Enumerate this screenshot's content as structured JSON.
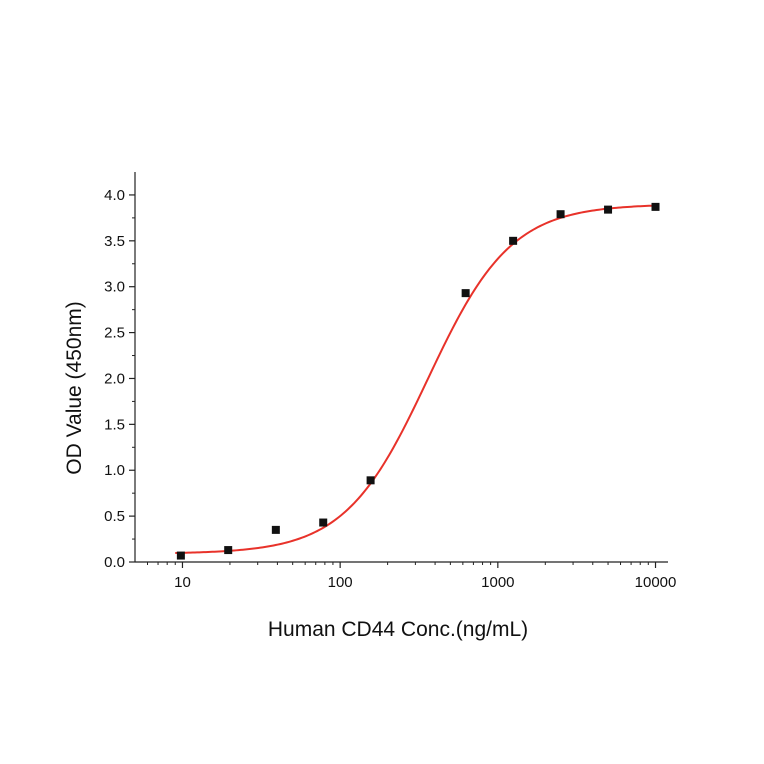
{
  "chart_data": {
    "type": "scatter",
    "title": "",
    "xlabel": "Human CD44 Conc.(ng/mL)",
    "ylabel": "OD Value (450nm)",
    "x_scale": "log",
    "xlim": [
      5,
      12000
    ],
    "ylim": [
      0.0,
      4.25
    ],
    "x_ticks": [
      10,
      100,
      1000,
      10000
    ],
    "x_tick_labels": [
      "10",
      "100",
      "1000",
      "10000"
    ],
    "y_ticks": [
      0.0,
      0.5,
      1.0,
      1.5,
      2.0,
      2.5,
      3.0,
      3.5,
      4.0
    ],
    "y_tick_labels": [
      "0.0",
      "0.5",
      "1.0",
      "1.5",
      "2.0",
      "2.5",
      "3.0",
      "3.5",
      "4.0"
    ],
    "grid": false,
    "legend": "none",
    "series": [
      {
        "marker": "square",
        "color": "#111111",
        "x": [
          9.77,
          19.5,
          39.1,
          78.1,
          156,
          625,
          1250,
          2500,
          5000,
          10000
        ],
        "y": [
          0.07,
          0.13,
          0.35,
          0.43,
          0.89,
          2.93,
          3.5,
          3.79,
          3.84,
          3.87
        ]
      },
      {
        "line": "fitted curve",
        "color": "#e8322a",
        "fit": {
          "model": "4PL",
          "bottom": 0.09,
          "top": 3.9,
          "ec50": 360,
          "hill": 1.65
        }
      }
    ]
  }
}
